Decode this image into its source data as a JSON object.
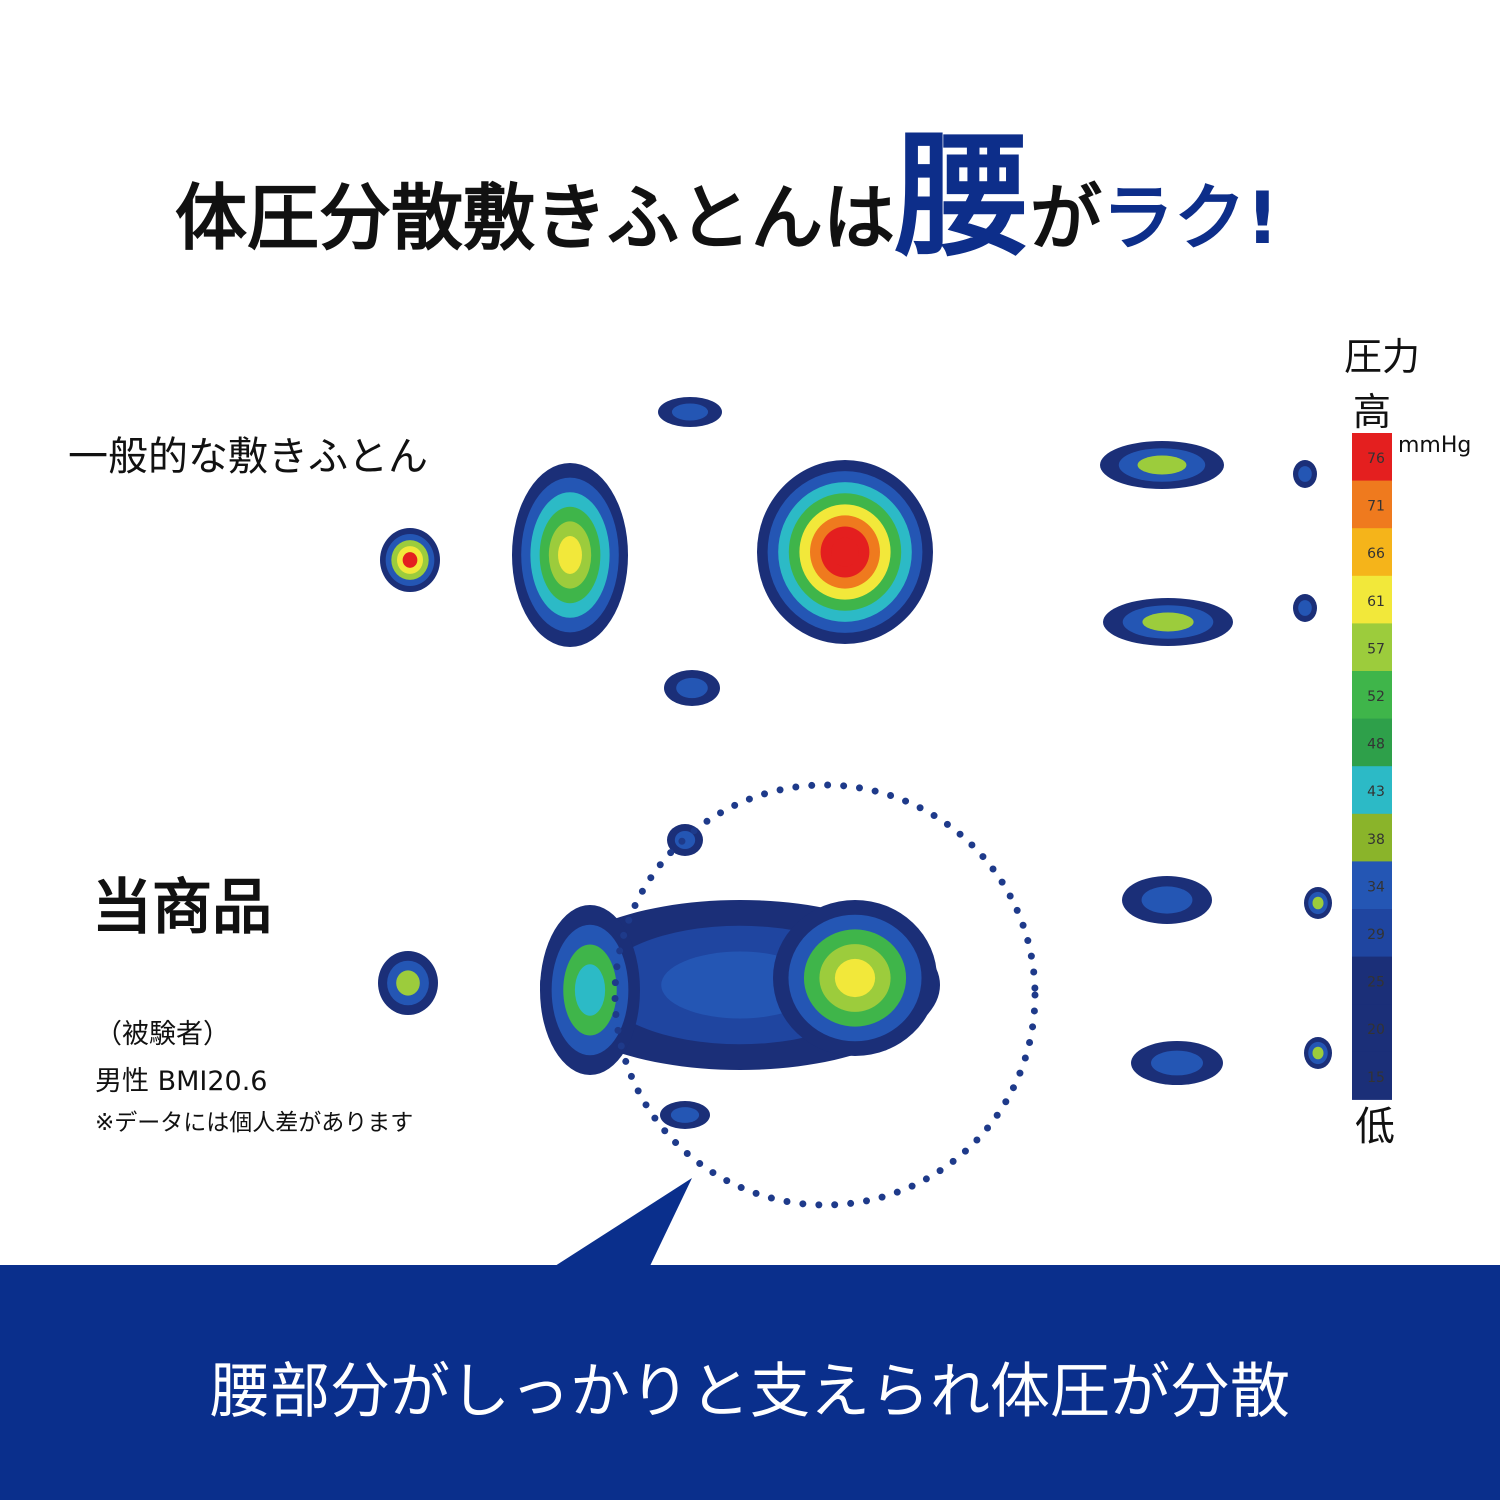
{
  "header": {
    "title_part1": "体圧分散敷きふとんは",
    "title_emphasis": "腰",
    "title_part2": "が",
    "title_part3": "ラク!"
  },
  "panels": [
    {
      "label": "一般的な敷きふとん"
    },
    {
      "label": "当商品"
    }
  ],
  "notes": {
    "subject": "（被験者）",
    "profile": "男性 BMI20.6",
    "disclaimer": "※データには個人差があります"
  },
  "legend": {
    "title": "圧力",
    "high": "高",
    "low": "低",
    "unit": "mmHg",
    "ticks": [
      76,
      71,
      66,
      61,
      57,
      52,
      48,
      43,
      38,
      34,
      29,
      25,
      20,
      15
    ],
    "colors": [
      "#e41f1f",
      "#ef7a1e",
      "#f5b41a",
      "#f2e83a",
      "#9ccc3c",
      "#3fb54a",
      "#2ea04a",
      "#2cbac6",
      "#8ab42a",
      "#2456b4",
      "#1f45a0",
      "#1b2f78",
      "#1b2f78",
      "#1b2f78"
    ]
  },
  "banner": {
    "text": "腰部分がしっかりと支えられ体圧が分散"
  }
}
